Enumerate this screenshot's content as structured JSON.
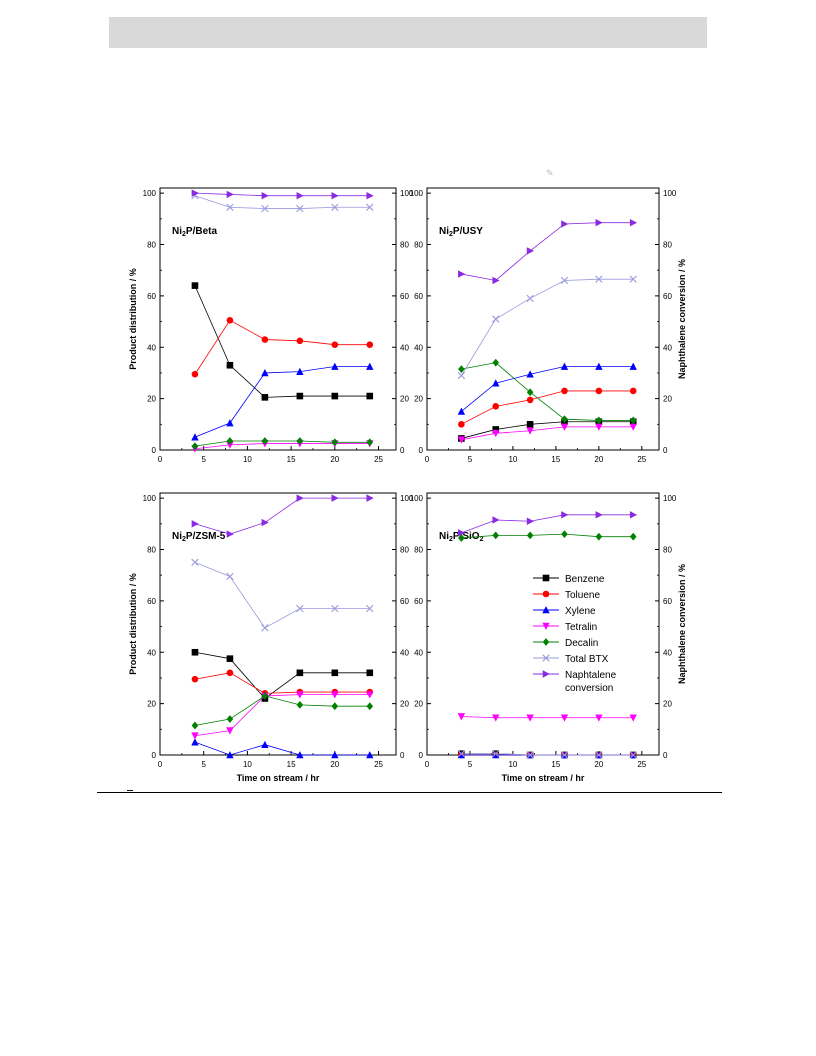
{
  "colors": {
    "Benzene": "#000000",
    "Toluene": "#ff0000",
    "Xylene": "#0000ff",
    "Tetralin": "#ff00ff",
    "Decalin": "#008000",
    "Total BTX": "#9999dd",
    "Naphtalene conversion": "#8a2be2"
  },
  "chart_data": [
    {
      "type": "line",
      "title_parts": [
        "Ni",
        "2",
        "P/Beta"
      ],
      "xlabel": "",
      "ylabel": "Product distribution / %",
      "y2label": "",
      "xlim": [
        0,
        27
      ],
      "ylim": [
        0,
        102
      ],
      "y2lim": [
        0,
        102
      ],
      "xticks": [
        0,
        5,
        10,
        15,
        20,
        25
      ],
      "yticks": [
        0,
        20,
        40,
        60,
        80,
        100
      ],
      "x": [
        4,
        8,
        12,
        16,
        20,
        24
      ],
      "series": [
        {
          "name": "Benzene",
          "values": [
            64,
            33,
            20.5,
            21,
            21,
            21
          ]
        },
        {
          "name": "Toluene",
          "values": [
            29.5,
            50.5,
            43,
            42.5,
            41,
            41
          ]
        },
        {
          "name": "Xylene",
          "values": [
            5,
            10.5,
            30,
            30.5,
            32.5,
            32.5
          ]
        },
        {
          "name": "Tetralin",
          "values": [
            0.5,
            2,
            2.5,
            2.5,
            2.5,
            2.5
          ]
        },
        {
          "name": "Decalin",
          "values": [
            1.5,
            3.5,
            3.5,
            3.5,
            3,
            3
          ]
        },
        {
          "name": "Total BTX",
          "values": [
            99,
            94.5,
            94,
            94,
            94.5,
            94.5
          ]
        },
        {
          "name": "Naphtalene conversion",
          "values": [
            100,
            99.5,
            99,
            99,
            99,
            99
          ]
        }
      ]
    },
    {
      "type": "line",
      "title_parts": [
        "Ni",
        "2",
        "P/USY"
      ],
      "xlabel": "",
      "ylabel": "",
      "y2label": "Naphthalene conversion / %",
      "xlim": [
        0,
        27
      ],
      "ylim": [
        0,
        102
      ],
      "y2lim": [
        0,
        102
      ],
      "xticks": [
        0,
        5,
        10,
        15,
        20,
        25
      ],
      "yticks": [
        0,
        20,
        40,
        60,
        80,
        100
      ],
      "x": [
        4,
        8,
        12,
        16,
        20,
        24
      ],
      "series": [
        {
          "name": "Benzene",
          "values": [
            4.5,
            8,
            10,
            11,
            11,
            11
          ]
        },
        {
          "name": "Toluene",
          "values": [
            10,
            17,
            19.5,
            23,
            23,
            23
          ]
        },
        {
          "name": "Xylene",
          "values": [
            15,
            26,
            29.5,
            32.5,
            32.5,
            32.5
          ]
        },
        {
          "name": "Tetralin",
          "values": [
            4,
            6.5,
            7.5,
            9,
            9,
            9
          ]
        },
        {
          "name": "Decalin",
          "values": [
            31.5,
            34,
            22.5,
            12,
            11.5,
            11.5
          ]
        },
        {
          "name": "Total BTX",
          "values": [
            29,
            51,
            59,
            66,
            66.5,
            66.5
          ]
        },
        {
          "name": "Naphtalene conversion",
          "values": [
            68.5,
            66,
            77.5,
            88,
            88.5,
            88.5
          ]
        }
      ]
    },
    {
      "type": "line",
      "title_parts": [
        "Ni",
        "2",
        "P/ZSM-5"
      ],
      "xlabel": "Time on stream / hr",
      "ylabel": "Product distribution / %",
      "y2label": "",
      "xlim": [
        0,
        27
      ],
      "ylim": [
        0,
        102
      ],
      "y2lim": [
        0,
        102
      ],
      "xticks": [
        0,
        5,
        10,
        15,
        20,
        25
      ],
      "yticks": [
        0,
        20,
        40,
        60,
        80,
        100
      ],
      "x": [
        4,
        8,
        12,
        16,
        20,
        24
      ],
      "series": [
        {
          "name": "Benzene",
          "values": [
            40,
            37.5,
            22,
            32,
            32,
            32
          ]
        },
        {
          "name": "Toluene",
          "values": [
            29.5,
            32,
            24,
            24.5,
            24.5,
            24.5
          ]
        },
        {
          "name": "Xylene",
          "values": [
            5,
            0,
            4,
            0,
            0,
            0
          ]
        },
        {
          "name": "Tetralin",
          "values": [
            7.5,
            9.5,
            23,
            23.5,
            23.5,
            23.5
          ]
        },
        {
          "name": "Decalin",
          "values": [
            11.5,
            14,
            23,
            19.5,
            19,
            19
          ]
        },
        {
          "name": "Total BTX",
          "values": [
            75,
            69.5,
            49.5,
            57,
            57,
            57
          ]
        },
        {
          "name": "Naphtalene conversion",
          "values": [
            90,
            86,
            90.5,
            100,
            100,
            100
          ]
        }
      ]
    },
    {
      "type": "line",
      "title_parts": [
        "Ni",
        "2",
        "P/SiO",
        "2",
        ""
      ],
      "xlabel": "Time on stream / hr",
      "ylabel": "",
      "y2label": "Naphthalene conversion / %",
      "xlim": [
        0,
        27
      ],
      "ylim": [
        0,
        102
      ],
      "y2lim": [
        0,
        102
      ],
      "xticks": [
        0,
        5,
        10,
        15,
        20,
        25
      ],
      "yticks": [
        0,
        20,
        40,
        60,
        80,
        100
      ],
      "x": [
        4,
        8,
        12,
        16,
        20,
        24
      ],
      "series": [
        {
          "name": "Benzene",
          "values": [
            0.5,
            0.5,
            0,
            0,
            0,
            0
          ]
        },
        {
          "name": "Toluene",
          "values": [
            0,
            0,
            0,
            0,
            0,
            0
          ]
        },
        {
          "name": "Xylene",
          "values": [
            0,
            0,
            0,
            0,
            0,
            0
          ]
        },
        {
          "name": "Tetralin",
          "values": [
            15,
            14.5,
            14.5,
            14.5,
            14.5,
            14.5
          ]
        },
        {
          "name": "Decalin",
          "values": [
            84.5,
            85.5,
            85.5,
            86,
            85,
            85
          ]
        },
        {
          "name": "Total BTX",
          "values": [
            0.5,
            0.5,
            0,
            0,
            0,
            0
          ]
        },
        {
          "name": "Naphtalene conversion",
          "values": [
            86.5,
            91.5,
            91,
            93.5,
            93.5,
            93.5
          ]
        }
      ]
    }
  ],
  "legend": {
    "placement": "inside panel 4, center",
    "entries": [
      "Benzene",
      "Toluene",
      "Xylene",
      "Tetralin",
      "Decalin",
      "Total BTX",
      "Naphtalene",
      "conversion"
    ]
  },
  "series_markers": {
    "Benzene": "square",
    "Toluene": "circle",
    "Xylene": "triangle-up",
    "Tetralin": "triangle-down",
    "Decalin": "diamond",
    "Total BTX": "x",
    "Naphtalene conversion": "triangle-right"
  }
}
